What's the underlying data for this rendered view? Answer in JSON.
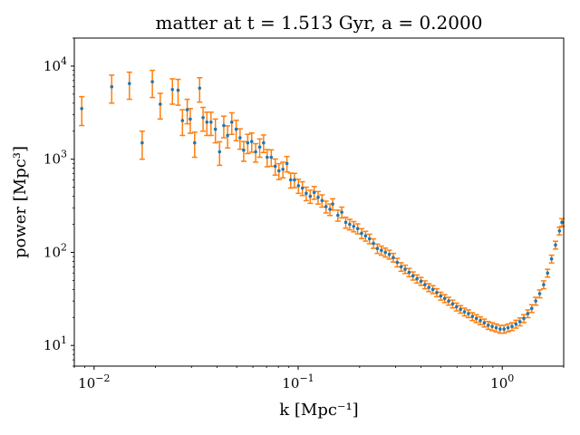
{
  "chart_data": {
    "type": "scatter",
    "title": "matter at t = 1.513 Gyr, a = 0.2000",
    "xlabel": "k [Mpc⁻¹]",
    "ylabel": "power [Mpc³]",
    "xscale": "log",
    "yscale": "log",
    "xlim": [
      0.008,
      2.0
    ],
    "ylim": [
      6,
      20000
    ],
    "grid": false,
    "x_ticks": [
      {
        "value": 0.01,
        "base": "10",
        "exp": "−2"
      },
      {
        "value": 0.1,
        "base": "10",
        "exp": "−1"
      },
      {
        "value": 1,
        "base": "10",
        "exp": "0"
      }
    ],
    "y_ticks": [
      {
        "value": 10,
        "base": "10",
        "exp": "1"
      },
      {
        "value": 100,
        "base": "10",
        "exp": "2"
      },
      {
        "value": 1000,
        "base": "10",
        "exp": "3"
      },
      {
        "value": 10000,
        "base": "10",
        "exp": "4"
      }
    ],
    "colors": {
      "points": "#1f77b4",
      "errorbars": "#ff7f0e"
    },
    "series": [
      {
        "x": [
          0.0087,
          0.0122,
          0.0149,
          0.0172,
          0.0193,
          0.0211,
          0.0242,
          0.0258,
          0.0271,
          0.0286,
          0.0296,
          0.0311,
          0.0329,
          0.0342,
          0.0357,
          0.0374,
          0.0393,
          0.0412,
          0.0432,
          0.0451,
          0.0473,
          0.0497,
          0.0519,
          0.0541,
          0.0566,
          0.0592,
          0.0619,
          0.0648,
          0.0677,
          0.0705,
          0.0738,
          0.0772,
          0.0805,
          0.0842,
          0.0881,
          0.0919,
          0.0959,
          0.1003,
          0.1049,
          0.1095,
          0.1146,
          0.1198,
          0.1252,
          0.1309,
          0.1369,
          0.1431,
          0.1476,
          0.1565,
          0.1636,
          0.1711,
          0.1789,
          0.1871,
          0.1956,
          0.2045,
          0.2139,
          0.2236,
          0.2338,
          0.2445,
          0.2557,
          0.2673,
          0.2795,
          0.2923,
          0.3057,
          0.3196,
          0.3342,
          0.3495,
          0.3654,
          0.3821,
          0.3996,
          0.4178,
          0.4369,
          0.4569,
          0.4778,
          0.4996,
          0.5224,
          0.5463,
          0.5712,
          0.5973,
          0.6246,
          0.6531,
          0.6829,
          0.7141,
          0.7467,
          0.7808,
          0.8165,
          0.8538,
          0.8927,
          0.9335,
          0.9761,
          1.0207,
          1.0673,
          1.1161,
          1.167,
          1.2203,
          1.2761,
          1.3344,
          1.3953,
          1.459,
          1.5256,
          1.5953,
          1.6681,
          1.7443,
          1.824,
          1.9073,
          1.96
        ],
        "y": [
          3500,
          6000,
          6500,
          1500,
          6800,
          3900,
          5600,
          5500,
          2600,
          3400,
          2700,
          1500,
          5800,
          2800,
          2500,
          2500,
          2100,
          1200,
          2300,
          1800,
          2500,
          2100,
          1700,
          1250,
          1500,
          1550,
          1200,
          1350,
          1500,
          1050,
          1050,
          840,
          750,
          780,
          900,
          600,
          600,
          520,
          490,
          430,
          400,
          440,
          390,
          360,
          310,
          290,
          330,
          250,
          270,
          210,
          200,
          190,
          180,
          160,
          150,
          140,
          125,
          110,
          105,
          100,
          95,
          88,
          78,
          70,
          66,
          61,
          56,
          52,
          49,
          45,
          42,
          40,
          37,
          34,
          32,
          30,
          28,
          26,
          24.5,
          23,
          22,
          20.5,
          19.5,
          18.5,
          17.5,
          16.5,
          16,
          15.5,
          15,
          15,
          15.5,
          16,
          17,
          18,
          19.5,
          22,
          25,
          30,
          36,
          45,
          60,
          85,
          120,
          170,
          210
        ],
        "yerr": [
          1200,
          2000,
          2100,
          500,
          2200,
          1200,
          1700,
          1700,
          800,
          1000,
          800,
          450,
          1700,
          800,
          700,
          700,
          600,
          340,
          600,
          480,
          650,
          520,
          420,
          300,
          350,
          360,
          270,
          300,
          320,
          220,
          210,
          165,
          145,
          150,
          170,
          110,
          105,
          90,
          83,
          71,
          64,
          69,
          60,
          54,
          45,
          41,
          46,
          34,
          36,
          28,
          26,
          24,
          22,
          19.5,
          18,
          16.5,
          14.5,
          12.6,
          11.8,
          11,
          10.3,
          9.4,
          8.2,
          7.3,
          6.8,
          6.2,
          5.6,
          5.2,
          4.8,
          4.4,
          4.1,
          3.9,
          3.6,
          3.3,
          3.1,
          2.9,
          2.7,
          2.5,
          2.3,
          2.2,
          2.1,
          2.0,
          1.9,
          1.8,
          1.7,
          1.6,
          1.55,
          1.5,
          1.45,
          1.45,
          1.5,
          1.55,
          1.65,
          1.75,
          1.9,
          2.1,
          2.4,
          2.9,
          3.5,
          4.4,
          5.8,
          8.2,
          11.6,
          16.4,
          20
        ]
      }
    ]
  }
}
